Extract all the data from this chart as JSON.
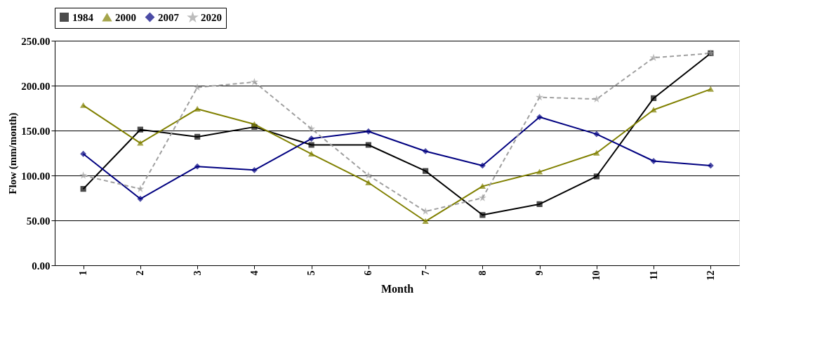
{
  "chart_data": {
    "type": "line",
    "xlabel": "Month",
    "ylabel": "Flow (mm/month)",
    "categories": [
      "1",
      "2",
      "3",
      "4",
      "5",
      "6",
      "7",
      "8",
      "9",
      "10",
      "11",
      "12"
    ],
    "ylim": [
      0,
      250
    ],
    "yticks": [
      {
        "value": 0,
        "label": "0.00"
      },
      {
        "value": 50,
        "label": "50.00"
      },
      {
        "value": 100,
        "label": "100.00"
      },
      {
        "value": 150,
        "label": "150.00"
      },
      {
        "value": 200,
        "label": "200.00"
      },
      {
        "value": 250,
        "label": "250.00"
      }
    ],
    "grid": "y",
    "legend": "top",
    "series": [
      {
        "name": "1984",
        "color": "#000000",
        "marker": "square",
        "line_style": "solid",
        "values": [
          85,
          151,
          143,
          154,
          134,
          134,
          105,
          56,
          68,
          99,
          186,
          236
        ]
      },
      {
        "name": "2000",
        "color": "#808000",
        "marker": "triangle",
        "line_style": "solid",
        "values": [
          178,
          136,
          174,
          157,
          124,
          92,
          49,
          88,
          104,
          125,
          173,
          196
        ]
      },
      {
        "name": "2007",
        "color": "#000080",
        "marker": "diamond",
        "line_style": "solid",
        "values": [
          124,
          74,
          110,
          106,
          141,
          149,
          127,
          111,
          165,
          146,
          116,
          111
        ]
      },
      {
        "name": "2020",
        "color": "#a0a0a0",
        "marker": "star",
        "line_style": "dashed",
        "values": [
          100,
          85,
          198,
          204,
          152,
          100,
          60,
          75,
          187,
          185,
          231,
          236
        ]
      }
    ]
  }
}
